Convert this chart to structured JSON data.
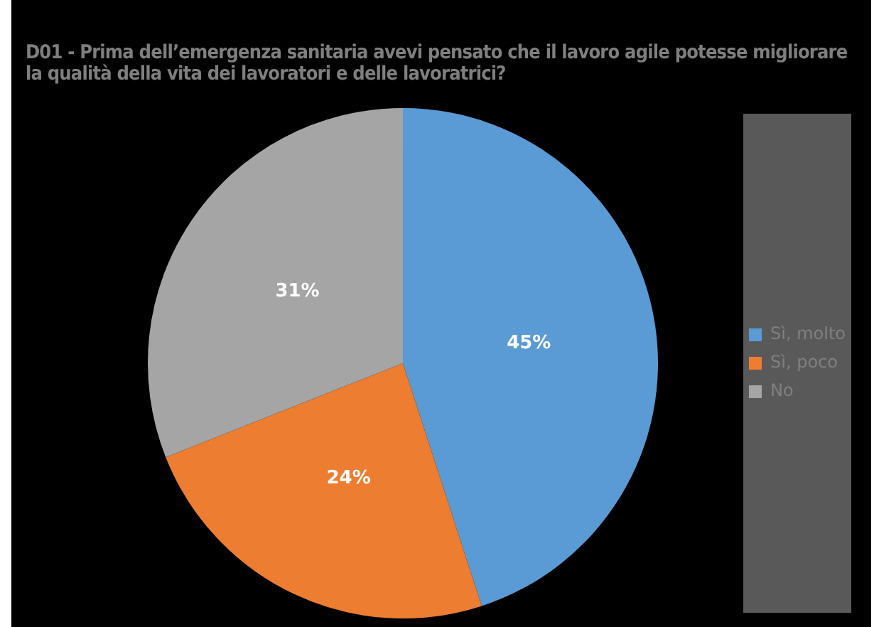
{
  "chart_data": {
    "type": "pie",
    "title": "D01 - Prima dell’emergenza sanitaria avevi pensato che il lavoro agile potesse migliorare la qualità della vita dei lavoratori e delle lavoratrici?",
    "categories": [
      "Sì, molto",
      "Sì, poco",
      "No"
    ],
    "values": [
      45,
      24,
      31
    ],
    "colors": [
      "#5b9bd5",
      "#ed7d31",
      "#a5a5a5"
    ],
    "value_labels": [
      "45%",
      "24%",
      "31%"
    ],
    "legend": "right"
  }
}
